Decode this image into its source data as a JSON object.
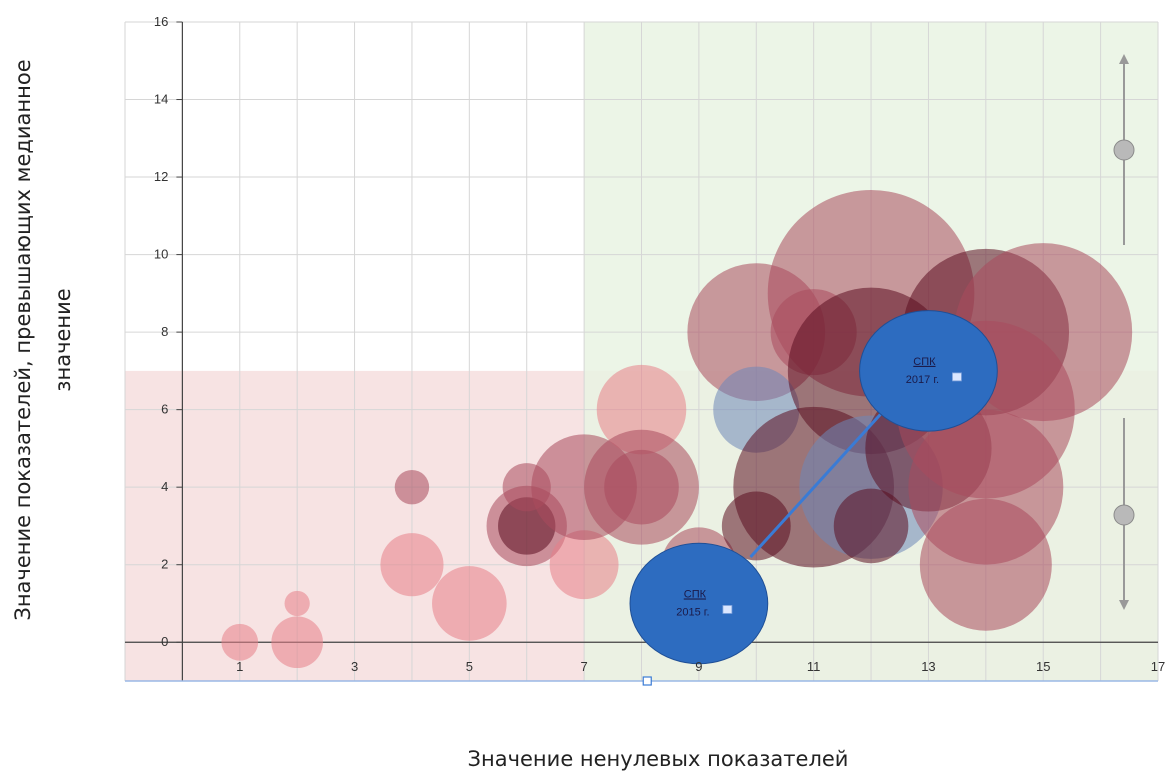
{
  "chart_data": {
    "type": "bubble",
    "xlabel": "Значение ненулевых показателей",
    "ylabel_line1": "Значение показателей, превышающих медианное",
    "ylabel_line2": "значение",
    "xlim": [
      -1,
      17
    ],
    "ylim": [
      -1,
      16
    ],
    "x_ticks": [
      1,
      3,
      5,
      7,
      9,
      11,
      13,
      15,
      17
    ],
    "y_ticks": [
      0,
      2,
      4,
      6,
      8,
      10,
      12,
      14,
      16
    ],
    "grid": true,
    "quadrants": [
      {
        "name": "low-zone",
        "x": [
          -1,
          17
        ],
        "y": [
          -1,
          7
        ],
        "color": "#f6dede"
      },
      {
        "name": "high-zone",
        "x": [
          7,
          17
        ],
        "y": [
          -1,
          16
        ],
        "color": "#e9f3e3"
      }
    ],
    "colors": {
      "light": "#e77f88",
      "medium": "#a94a5c",
      "dark": "#5b0f20",
      "blue_faint": "#6e86b8",
      "highlight": "#2d6cc0",
      "arrow": "#3a7bd5"
    },
    "bubbles": [
      {
        "x": 1,
        "y": 0,
        "size": 0.32,
        "tone": "light"
      },
      {
        "x": 2,
        "y": 0,
        "size": 0.45,
        "tone": "light"
      },
      {
        "x": 2,
        "y": 1,
        "size": 0.22,
        "tone": "light"
      },
      {
        "x": 4,
        "y": 4,
        "size": 0.3,
        "tone": "medium"
      },
      {
        "x": 4,
        "y": 2,
        "size": 0.55,
        "tone": "light"
      },
      {
        "x": 5,
        "y": 1,
        "size": 0.65,
        "tone": "light"
      },
      {
        "x": 6,
        "y": 3,
        "size": 0.7,
        "tone": "medium"
      },
      {
        "x": 6,
        "y": 3,
        "size": 0.5,
        "tone": "dark"
      },
      {
        "x": 6,
        "y": 4,
        "size": 0.42,
        "tone": "medium"
      },
      {
        "x": 7,
        "y": 2,
        "size": 0.6,
        "tone": "light"
      },
      {
        "x": 7,
        "y": 4,
        "size": 0.92,
        "tone": "medium"
      },
      {
        "x": 8,
        "y": 6,
        "size": 0.78,
        "tone": "light"
      },
      {
        "x": 8,
        "y": 4,
        "size": 1.0,
        "tone": "medium"
      },
      {
        "x": 8,
        "y": 4,
        "size": 0.65,
        "tone": "medium"
      },
      {
        "x": 9,
        "y": 2,
        "size": 0.65,
        "tone": "medium"
      },
      {
        "x": 10,
        "y": 8,
        "size": 1.2,
        "tone": "medium"
      },
      {
        "x": 10,
        "y": 6,
        "size": 0.75,
        "tone": "blue_faint"
      },
      {
        "x": 10,
        "y": 3,
        "size": 0.6,
        "tone": "dark"
      },
      {
        "x": 11,
        "y": 4,
        "size": 1.4,
        "tone": "dark"
      },
      {
        "x": 11,
        "y": 8,
        "size": 0.75,
        "tone": "medium"
      },
      {
        "x": 12,
        "y": 9,
        "size": 1.8,
        "tone": "medium"
      },
      {
        "x": 12,
        "y": 7,
        "size": 1.45,
        "tone": "dark"
      },
      {
        "x": 12,
        "y": 4,
        "size": 1.25,
        "tone": "blue_faint"
      },
      {
        "x": 12,
        "y": 3,
        "size": 0.65,
        "tone": "dark"
      },
      {
        "x": 13,
        "y": 5,
        "size": 1.1,
        "tone": "dark"
      },
      {
        "x": 14,
        "y": 8,
        "size": 1.45,
        "tone": "dark"
      },
      {
        "x": 14,
        "y": 6,
        "size": 1.55,
        "tone": "medium"
      },
      {
        "x": 14,
        "y": 4,
        "size": 1.35,
        "tone": "medium"
      },
      {
        "x": 14,
        "y": 2,
        "size": 1.15,
        "tone": "medium"
      },
      {
        "x": 15,
        "y": 8,
        "size": 1.55,
        "tone": "medium"
      }
    ],
    "highlights": [
      {
        "x": 9,
        "y": 1,
        "label_line1": "СПК",
        "label_line2": "2015 г."
      },
      {
        "x": 13,
        "y": 7,
        "label_line1": "СПК",
        "label_line2": "2017 г."
      }
    ],
    "arrow": {
      "from": [
        9.9,
        2.2
      ],
      "to": [
        12.3,
        6.1
      ]
    }
  }
}
